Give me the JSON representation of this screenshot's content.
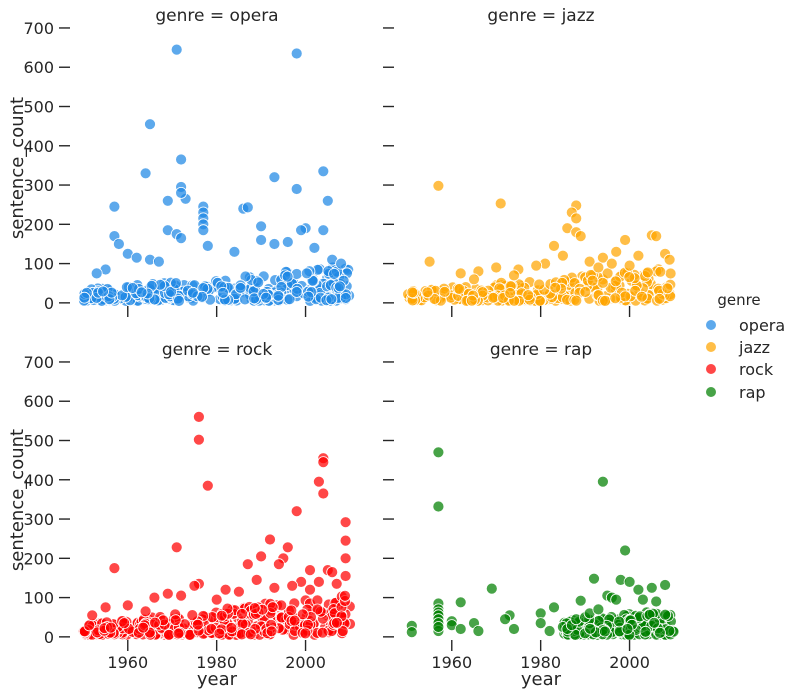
{
  "chart_data": {
    "type": "scatter",
    "title": "",
    "facet_variable": "genre",
    "xlabel": "year",
    "ylabel": "sentence_count",
    "xlim": [
      1947,
      2010
    ],
    "ylim": [
      -8,
      705
    ],
    "xticks": [
      1960,
      1980,
      2000
    ],
    "yticks": [
      0,
      100,
      200,
      300,
      400,
      500,
      600,
      700
    ],
    "legend": {
      "title": "genre",
      "placement": "right",
      "entries": [
        {
          "label": "opera",
          "color": "#1e88e5"
        },
        {
          "label": "jazz",
          "color": "#ffa500"
        },
        {
          "label": "rock",
          "color": "#ff0000"
        },
        {
          "label": "rap",
          "color": "#008000"
        }
      ]
    },
    "panels": [
      {
        "genre": "opera",
        "title": "genre = opera",
        "color": "#1e88e5",
        "dense_band": {
          "x_range": [
            1950,
            2010
          ],
          "y_min": 5,
          "y_max_start": 35,
          "y_max_end": 95,
          "points": 320
        },
        "points": [
          [
            1971,
            645
          ],
          [
            1998,
            635
          ],
          [
            1965,
            455
          ],
          [
            1972,
            365
          ],
          [
            1964,
            330
          ],
          [
            2004,
            335
          ],
          [
            1993,
            320
          ],
          [
            1972,
            295
          ],
          [
            1998,
            290
          ],
          [
            1969,
            260
          ],
          [
            1973,
            265
          ],
          [
            1972,
            280
          ],
          [
            2005,
            260
          ],
          [
            1957,
            245
          ],
          [
            1977,
            245
          ],
          [
            1986,
            240
          ],
          [
            1987,
            243
          ],
          [
            1977,
            230
          ],
          [
            1977,
            215
          ],
          [
            1977,
            200
          ],
          [
            1977,
            185
          ],
          [
            1990,
            195
          ],
          [
            1969,
            185
          ],
          [
            1971,
            175
          ],
          [
            1972,
            165
          ],
          [
            1957,
            170
          ],
          [
            2000,
            190
          ],
          [
            1999,
            185
          ],
          [
            2004,
            185
          ],
          [
            1958,
            150
          ],
          [
            1960,
            125
          ],
          [
            1962,
            115
          ],
          [
            1965,
            110
          ],
          [
            1967,
            105
          ],
          [
            1978,
            145
          ],
          [
            1984,
            130
          ],
          [
            1990,
            160
          ],
          [
            1993,
            150
          ],
          [
            1996,
            155
          ],
          [
            2002,
            140
          ],
          [
            2006,
            110
          ],
          [
            1955,
            85
          ],
          [
            1953,
            75
          ],
          [
            2008,
            100
          ]
        ]
      },
      {
        "genre": "jazz",
        "title": "genre = jazz",
        "color": "#ffa500",
        "dense_band": {
          "x_range": [
            1950,
            2010
          ],
          "y_min": 5,
          "y_max_start": 30,
          "y_max_end": 90,
          "points": 280
        },
        "points": [
          [
            1957,
            298
          ],
          [
            1971,
            253
          ],
          [
            1988,
            248
          ],
          [
            1987,
            230
          ],
          [
            1988,
            215
          ],
          [
            1986,
            190
          ],
          [
            1988,
            180
          ],
          [
            1989,
            170
          ],
          [
            1999,
            160
          ],
          [
            2005,
            172
          ],
          [
            2006,
            170
          ],
          [
            1983,
            145
          ],
          [
            1981,
            100
          ],
          [
            1985,
            120
          ],
          [
            1994,
            115
          ],
          [
            2002,
            120
          ],
          [
            2008,
            125
          ],
          [
            1962,
            75
          ],
          [
            1966,
            80
          ],
          [
            1970,
            90
          ],
          [
            1975,
            85
          ],
          [
            1979,
            95
          ],
          [
            1991,
            105
          ],
          [
            1996,
            100
          ],
          [
            2000,
            95
          ],
          [
            1955,
            105
          ],
          [
            1974,
            70
          ],
          [
            1965,
            60
          ],
          [
            2009,
            110
          ],
          [
            1997,
            130
          ],
          [
            1993,
            90
          ]
        ]
      },
      {
        "genre": "rock",
        "title": "genre = rock",
        "color": "#ff0000",
        "dense_band": {
          "x_range": [
            1950,
            2010
          ],
          "y_min": 5,
          "y_max_start": 30,
          "y_max_end": 110,
          "points": 360
        },
        "points": [
          [
            1976,
            560
          ],
          [
            1976,
            502
          ],
          [
            1978,
            385
          ],
          [
            2004,
            455
          ],
          [
            2004,
            445
          ],
          [
            2003,
            395
          ],
          [
            2004,
            365
          ],
          [
            1998,
            320
          ],
          [
            2009,
            292
          ],
          [
            1992,
            248
          ],
          [
            2009,
            245
          ],
          [
            1971,
            228
          ],
          [
            1996,
            228
          ],
          [
            1990,
            205
          ],
          [
            2009,
            200
          ],
          [
            1995,
            200
          ],
          [
            1957,
            175
          ],
          [
            1987,
            185
          ],
          [
            1994,
            185
          ],
          [
            2001,
            170
          ],
          [
            2005,
            170
          ],
          [
            2006,
            165
          ],
          [
            2009,
            155
          ],
          [
            1976,
            135
          ],
          [
            1975,
            130
          ],
          [
            1982,
            120
          ],
          [
            1989,
            145
          ],
          [
            1999,
            140
          ],
          [
            2003,
            140
          ],
          [
            1966,
            100
          ],
          [
            1969,
            110
          ],
          [
            1972,
            105
          ],
          [
            1985,
            115
          ],
          [
            1993,
            125
          ],
          [
            1997,
            130
          ],
          [
            2007,
            135
          ],
          [
            1955,
            75
          ],
          [
            1960,
            80
          ],
          [
            1952,
            55
          ],
          [
            1964,
            65
          ],
          [
            1980,
            95
          ],
          [
            2001,
            120
          ]
        ]
      },
      {
        "genre": "rap",
        "title": "genre = rap",
        "color": "#008000",
        "dense_band": {
          "x_range": [
            1985,
            2010
          ],
          "y_min": 5,
          "y_max_start": 40,
          "y_max_end": 70,
          "points": 220
        },
        "points": [
          [
            1957,
            470
          ],
          [
            1994,
            395
          ],
          [
            1957,
            332
          ],
          [
            1999,
            220
          ],
          [
            1992,
            148
          ],
          [
            1998,
            145
          ],
          [
            2000,
            140
          ],
          [
            2008,
            132
          ],
          [
            2005,
            125
          ],
          [
            1969,
            123
          ],
          [
            2002,
            120
          ],
          [
            1995,
            105
          ],
          [
            1996,
            100
          ],
          [
            1997,
            95
          ],
          [
            1989,
            92
          ],
          [
            2003,
            95
          ],
          [
            2006,
            90
          ],
          [
            1962,
            88
          ],
          [
            1957,
            85
          ],
          [
            1983,
            75
          ],
          [
            1957,
            70
          ],
          [
            1980,
            60
          ],
          [
            1957,
            62
          ],
          [
            1957,
            55
          ],
          [
            1973,
            55
          ],
          [
            1972,
            45
          ],
          [
            1957,
            45
          ],
          [
            1957,
            35
          ],
          [
            1960,
            40
          ],
          [
            1960,
            30
          ],
          [
            1951,
            28
          ],
          [
            1965,
            35
          ],
          [
            1962,
            20
          ],
          [
            1966,
            15
          ],
          [
            1951,
            12
          ],
          [
            1957,
            15
          ],
          [
            1957,
            25
          ],
          [
            1974,
            20
          ],
          [
            1980,
            35
          ],
          [
            1982,
            15
          ],
          [
            1985,
            25
          ],
          [
            1986,
            20
          ],
          [
            1987,
            30
          ],
          [
            1988,
            45
          ],
          [
            1990,
            50
          ],
          [
            1991,
            60
          ],
          [
            1993,
            70
          ]
        ]
      }
    ]
  }
}
